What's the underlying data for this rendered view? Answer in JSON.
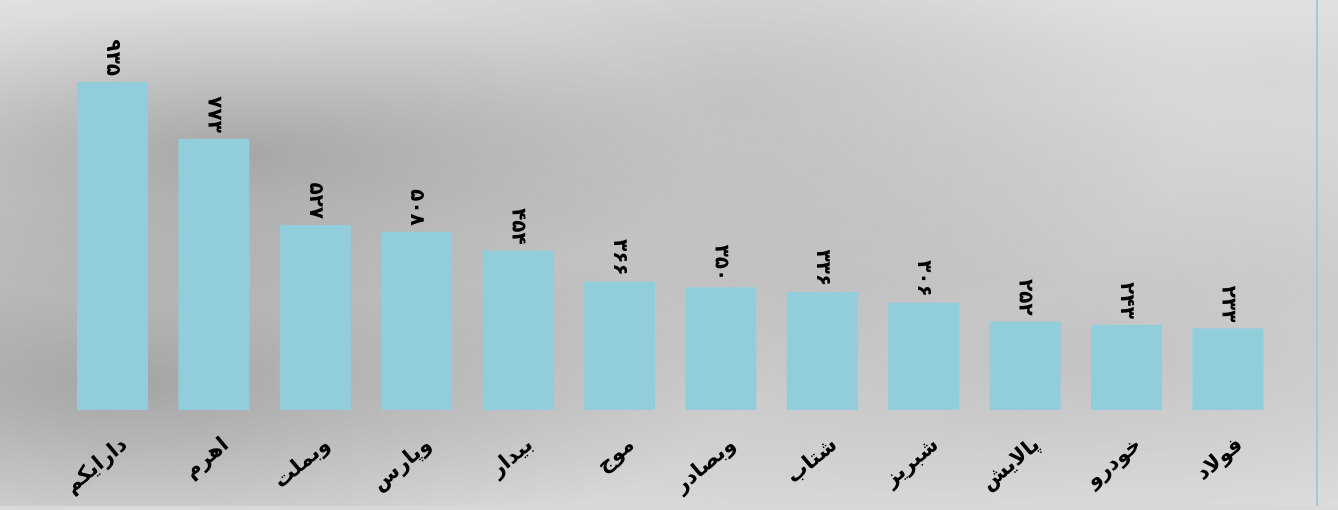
{
  "chart_data": {
    "type": "bar",
    "categories": [
      "دارایکم",
      "اهرم",
      "وبملت",
      "وپارس",
      "بیدار",
      "موج",
      "وبصادر",
      "شتاب",
      "شبریز",
      "پالایش",
      "خودرو",
      "فولاد"
    ],
    "values": [
      935,
      773,
      527,
      508,
      454,
      366,
      350,
      336,
      306,
      252,
      243,
      233
    ],
    "value_labels": [
      "۹۳۵",
      "۷۷۳",
      "۵۲۷",
      "۵۰۸",
      "۴۵۴",
      "۳۶۶",
      "۳۵۰",
      "۳۳۶",
      "۳۰۶",
      "۲۵۲",
      "۲۴۳",
      "۲۳۳"
    ],
    "title": "",
    "xlabel": "",
    "ylabel": "",
    "ylim": [
      0,
      1000
    ],
    "grid": false,
    "legend": "none",
    "bar_color": "#92cddc"
  }
}
